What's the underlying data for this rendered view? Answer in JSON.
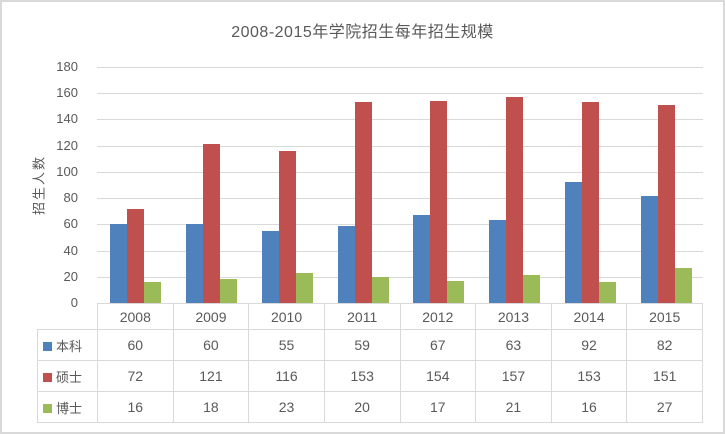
{
  "chart_data": {
    "type": "bar",
    "title": "2008-2015年学院招生每年招生规模",
    "ylabel": "招生人数",
    "categories": [
      "2008",
      "2009",
      "2010",
      "2011",
      "2012",
      "2013",
      "2014",
      "2015"
    ],
    "series": [
      {
        "name": "本科",
        "color": "#4F81BD",
        "values": [
          60,
          60,
          55,
          59,
          67,
          63,
          92,
          82
        ]
      },
      {
        "name": "硕士",
        "color": "#C0504D",
        "values": [
          72,
          121,
          116,
          153,
          154,
          157,
          153,
          151
        ]
      },
      {
        "name": "博士",
        "color": "#9BBB59",
        "values": [
          16,
          18,
          23,
          20,
          17,
          21,
          16,
          27
        ]
      }
    ],
    "ylim": [
      0,
      180
    ],
    "yticks": [
      0,
      20,
      40,
      60,
      80,
      100,
      120,
      140,
      160,
      180
    ],
    "grid": true,
    "legend_position": "data-table-left",
    "show_data_table": true
  },
  "style": {
    "text_color": "#595959",
    "gridline_color": "#D9D9D9",
    "border_color": "#D9D9D9",
    "background": "#FFFFFF"
  }
}
